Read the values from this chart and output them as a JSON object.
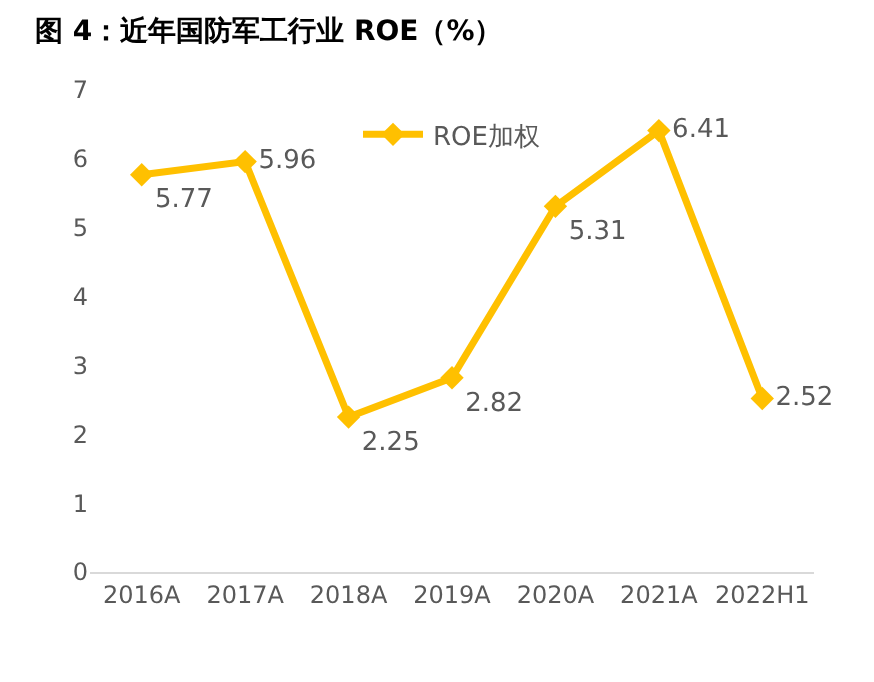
{
  "chart_data": {
    "type": "line",
    "title": "图 4：近年国防军工行业 ROE（%）",
    "categories": [
      "2016A",
      "2017A",
      "2018A",
      "2019A",
      "2020A",
      "2021A",
      "2022H1"
    ],
    "series": [
      {
        "name": "ROE加权",
        "color": "#ffc000",
        "values": [
          5.77,
          5.96,
          2.25,
          2.82,
          5.31,
          6.41,
          2.52
        ]
      }
    ],
    "ylim": [
      0,
      7
    ],
    "yticks": [
      0,
      1,
      2,
      3,
      4,
      5,
      6,
      7
    ],
    "legend": "top",
    "marker": "diamond",
    "line_style": "solid",
    "data_labels": true
  }
}
